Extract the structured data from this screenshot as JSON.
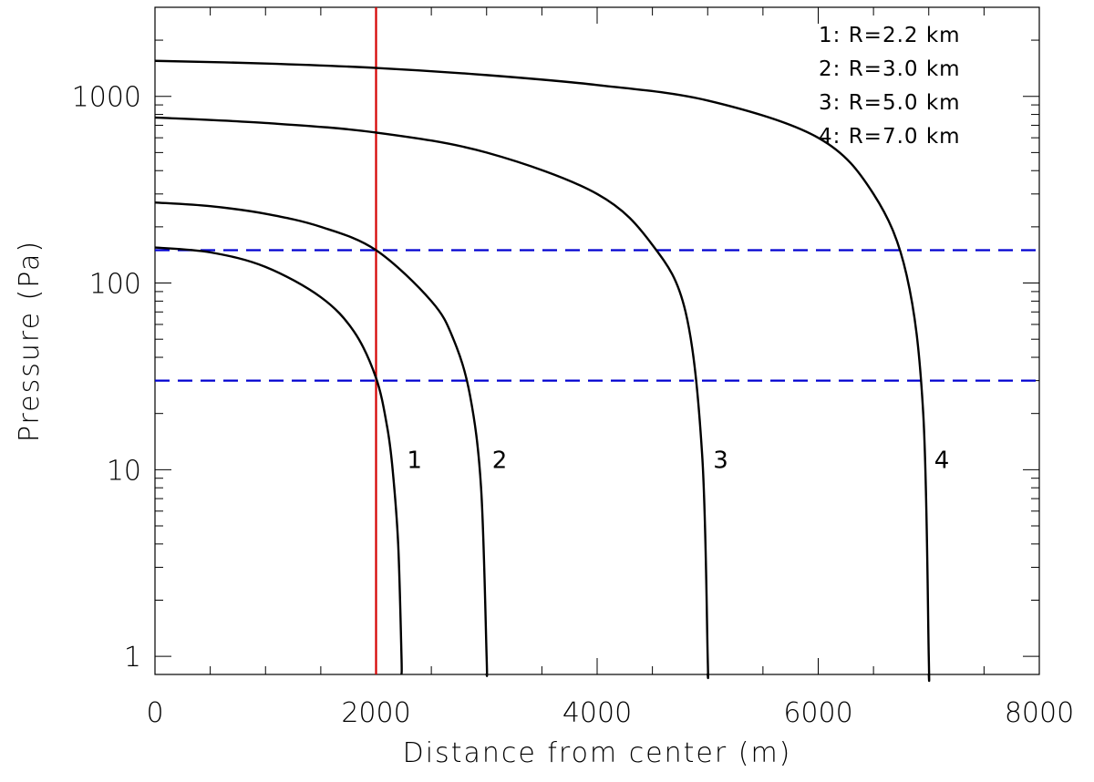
{
  "chart_data": {
    "type": "line",
    "title": "",
    "xlabel": "Distance from center (m)",
    "ylabel": "Pressure (Pa)",
    "xlim": [
      0,
      8000
    ],
    "ylim": [
      0.8,
      3000
    ],
    "yscale": "log",
    "x_ticks": [
      0,
      2000,
      4000,
      6000,
      8000
    ],
    "x_tick_labels": [
      "0",
      "2000",
      "4000",
      "6000",
      "8000"
    ],
    "y_ticks": [
      1,
      10,
      100,
      1000
    ],
    "y_tick_labels": [
      "1",
      "10",
      "100",
      "1000"
    ],
    "grid": false,
    "legend_position": "top-right",
    "legend": [
      "1: R=2.2 km",
      "2: R=3.0 km",
      "3: R=5.0 km",
      "4: R=7.0 km"
    ],
    "series": [
      {
        "label": "1",
        "color": "#000000",
        "x": [
          0,
          500,
          1000,
          1500,
          1800,
          2000,
          2100,
          2150,
          2200,
          2230
        ],
        "y": [
          155,
          146,
          122,
          84,
          55,
          31,
          17,
          10,
          4,
          1
        ]
      },
      {
        "label": "2",
        "color": "#000000",
        "x": [
          0,
          500,
          1000,
          1500,
          2000,
          2500,
          2700,
          2850,
          2950,
          3000
        ],
        "y": [
          270,
          258,
          235,
          200,
          150,
          80,
          50,
          25,
          8,
          1
        ]
      },
      {
        "label": "3",
        "color": "#000000",
        "x": [
          0,
          1000,
          2000,
          3000,
          4000,
          4500,
          4800,
          4950,
          5000
        ],
        "y": [
          770,
          720,
          640,
          500,
          300,
          160,
          70,
          12,
          1
        ]
      },
      {
        "label": "4",
        "color": "#000000",
        "x": [
          0,
          1000,
          2000,
          3000,
          4000,
          5000,
          6000,
          6500,
          6800,
          6950,
          7000
        ],
        "y": [
          1550,
          1500,
          1420,
          1300,
          1150,
          950,
          600,
          300,
          110,
          20,
          1
        ]
      }
    ],
    "reference_lines": [
      {
        "orientation": "vertical",
        "x": 2000,
        "color": "#d40000",
        "style": "solid"
      },
      {
        "orientation": "horizontal",
        "y": 150,
        "color": "#0000d0",
        "style": "dashed"
      },
      {
        "orientation": "horizontal",
        "y": 30,
        "color": "#0000d0",
        "style": "dashed"
      }
    ]
  }
}
